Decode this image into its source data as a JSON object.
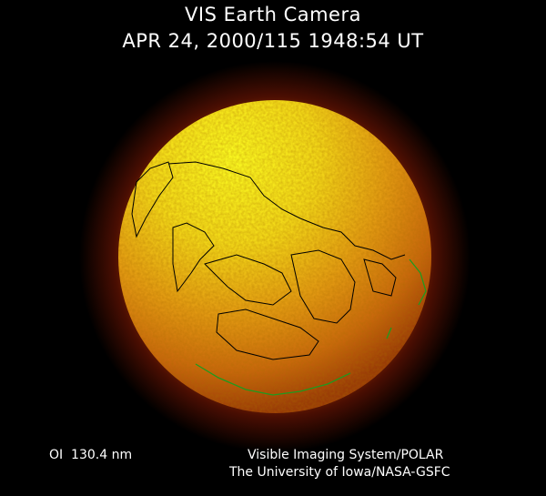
{
  "header": {
    "title": "VIS Earth Camera",
    "timestamp": "APR 24, 2000/115 1948:54 UT"
  },
  "footer": {
    "wavelength": "OI  130.4 nm",
    "credit_line1": "Visible Imaging System/POLAR",
    "credit_line2": "The University of Iowa/NASA-GSFC"
  },
  "colors": {
    "background": "#000000",
    "disk_bright": "#f6f21a",
    "disk_mid": "#e08a10",
    "limb": "#6a1a04",
    "coastline": "#000000",
    "auroral_oval": "#1f9a1f"
  }
}
